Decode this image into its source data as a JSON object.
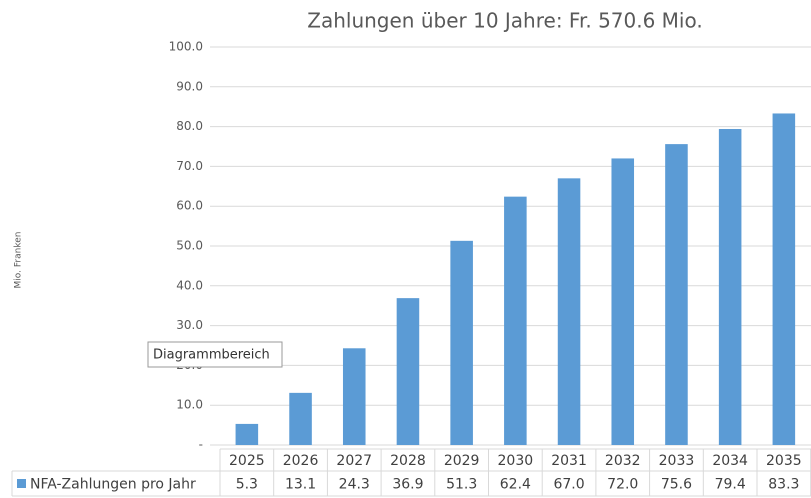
{
  "chart_data": {
    "type": "bar",
    "title": "Zahlungen über 10 Jahre: Fr. 570.6 Mio.",
    "y_label": "Mio. Franken",
    "tooltip": "Diagrammbereich",
    "categories": [
      "2025",
      "2026",
      "2027",
      "2028",
      "2029",
      "2030",
      "2031",
      "2032",
      "2033",
      "2034",
      "2035"
    ],
    "series": [
      {
        "name": "NFA-Zahlungen pro Jahr",
        "color": "#5b9bd5",
        "values": [
          5.3,
          13.1,
          24.3,
          36.9,
          51.3,
          62.4,
          67.0,
          72.0,
          75.6,
          79.4,
          83.3
        ],
        "value_labels": [
          "5.3",
          "13.1",
          "24.3",
          "36.9",
          "51.3",
          "62.4",
          "67.0",
          "72.0",
          "75.6",
          "79.4",
          "83.3"
        ]
      }
    ],
    "ylim": [
      0,
      100
    ],
    "yticks": [
      {
        "value": 0,
        "label": "-"
      },
      {
        "value": 10,
        "label": "10.0"
      },
      {
        "value": 20,
        "label": "20.0"
      },
      {
        "value": 30,
        "label": "30.0"
      },
      {
        "value": 40,
        "label": "40.0"
      },
      {
        "value": 50,
        "label": "50.0"
      },
      {
        "value": 60,
        "label": "60.0"
      },
      {
        "value": 70,
        "label": "70.0"
      },
      {
        "value": 80,
        "label": "80.0"
      },
      {
        "value": 90,
        "label": "90.0"
      },
      {
        "value": 100,
        "label": "100.0"
      }
    ],
    "grid": true
  }
}
